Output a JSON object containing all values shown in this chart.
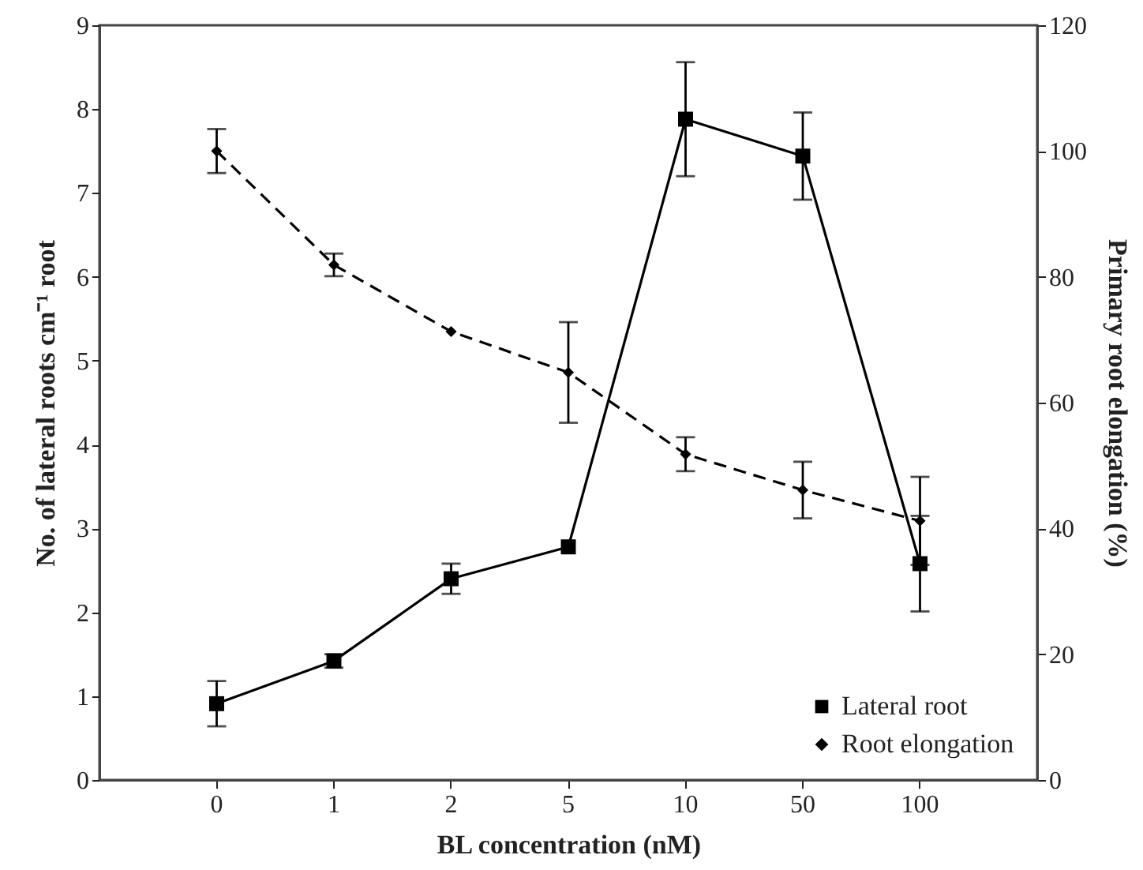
{
  "chart_data": {
    "type": "line",
    "xlabel": "BL concentration (nM)",
    "ylabel": "No. of lateral roots cm⁻¹ root",
    "y2label": "Primary root elongation (%)",
    "categories": [
      "0",
      "1",
      "2",
      "5",
      "10",
      "50",
      "100"
    ],
    "ylim": [
      0,
      9
    ],
    "yticks": [
      0,
      1,
      2,
      3,
      4,
      5,
      6,
      7,
      8,
      9
    ],
    "y2lim": [
      0,
      120
    ],
    "y2ticks": [
      0,
      20,
      40,
      60,
      80,
      100,
      120
    ],
    "grid": false,
    "legend": "bottom right",
    "series": [
      {
        "name": "Lateral root",
        "color": "#000000",
        "line_style": "solid",
        "marker": "square",
        "values": [
          0.91,
          1.42,
          2.4,
          2.78,
          7.88,
          7.44,
          2.58
        ],
        "errors": [
          0.27,
          0.08,
          0.18,
          null,
          0.68,
          0.52,
          0.57
        ]
      },
      {
        "name": "Root elongation",
        "color": "#000000",
        "line_style": "dashed",
        "marker": "diamond",
        "axis": "y2",
        "values": [
          100,
          81.9,
          71.3,
          64.8,
          51.8,
          46.1,
          41.2
        ],
        "errors": [
          3.5,
          1.8,
          null,
          8,
          2.7,
          4.5,
          7
        ]
      }
    ]
  }
}
